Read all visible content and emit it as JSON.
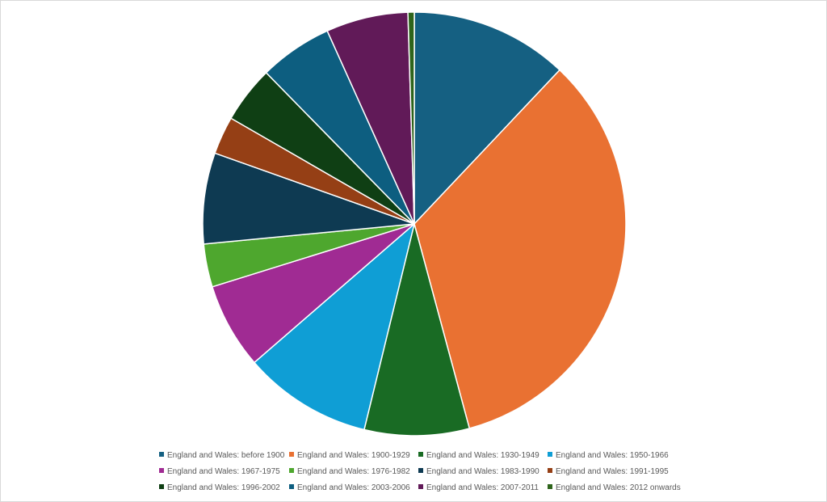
{
  "chart_data": {
    "type": "pie",
    "title": "",
    "legend_position": "bottom",
    "slices": [
      {
        "label": "England and Wales: before 1900",
        "value": 12.5,
        "color": "#156082"
      },
      {
        "label": "England and Wales: 1900-1929",
        "value": 35.0,
        "color": "#E97132"
      },
      {
        "label": "England and Wales: 1930-1949",
        "value": 8.3,
        "color": "#196B24"
      },
      {
        "label": "England and Wales: 1950-1966",
        "value": 10.2,
        "color": "#0F9ED5"
      },
      {
        "label": "England and Wales: 1967-1975",
        "value": 6.8,
        "color": "#A02B93"
      },
      {
        "label": "England and Wales: 1976-1982",
        "value": 3.4,
        "color": "#4EA72E"
      },
      {
        "label": "England and Wales: 1983-1990",
        "value": 7.2,
        "color": "#0E3A52"
      },
      {
        "label": "England and Wales: 1991-1995",
        "value": 3.0,
        "color": "#953F15"
      },
      {
        "label": "England and Wales: 1996-2002",
        "value": 4.5,
        "color": "#0F3F14"
      },
      {
        "label": "England and Wales: 2003-2006",
        "value": 5.8,
        "color": "#0D5E80"
      },
      {
        "label": "England and Wales: 2007-2011",
        "value": 6.5,
        "color": "#611A58"
      },
      {
        "label": "England and Wales: 2012 onwards",
        "value": 0.5,
        "color": "#2E641B"
      }
    ]
  }
}
